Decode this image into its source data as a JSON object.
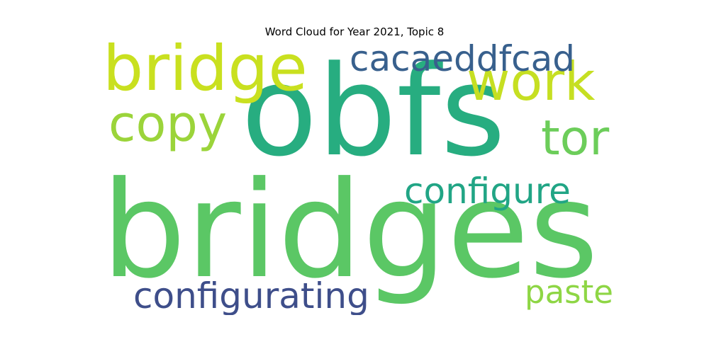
{
  "chart_data": {
    "type": "wordcloud",
    "title": "Word Cloud for Year 2021, Topic 8",
    "words": [
      {
        "text": "bridges",
        "color": "#5bc765"
      },
      {
        "text": "obfs",
        "color": "#27ad80"
      },
      {
        "text": "bridge",
        "color": "#c9e01f"
      },
      {
        "text": "work",
        "color": "#c6df22"
      },
      {
        "text": "cacaeddfcad",
        "color": "#38608d"
      },
      {
        "text": "copy",
        "color": "#9bd43a"
      },
      {
        "text": "tor",
        "color": "#6ccd5a"
      },
      {
        "text": "configure",
        "color": "#21a585"
      },
      {
        "text": "configurating",
        "color": "#3e4e8a"
      },
      {
        "text": "paste",
        "color": "#8ed645"
      }
    ]
  }
}
